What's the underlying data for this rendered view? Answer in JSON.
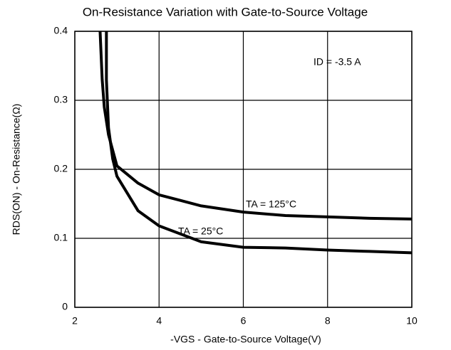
{
  "chart_data": {
    "type": "line",
    "title": "On-Resistance Variation with Gate-to-Source Voltage",
    "xlabel": "-VGS - Gate-to-Source Voltage(V)",
    "ylabel": "RDS(ON) - On-Resistance(Ω)",
    "annotations": [
      "ID = -3.5 A",
      "TA = 125°C",
      "TA = 25°C"
    ],
    "xlim": [
      2,
      10
    ],
    "xticks": [
      2,
      4,
      6,
      8,
      10
    ],
    "ylim": [
      0,
      0.4
    ],
    "yticks": [
      0,
      0.1,
      0.2,
      0.3,
      0.4
    ],
    "grid": true,
    "series": [
      {
        "name": "TA = 125°C",
        "color": "#000000",
        "x": [
          2.6,
          2.65,
          2.7,
          2.8,
          3.0,
          3.5,
          4,
          5,
          6,
          7,
          8,
          9,
          10
        ],
        "values": [
          0.4,
          0.33,
          0.29,
          0.25,
          0.205,
          0.18,
          0.163,
          0.147,
          0.138,
          0.133,
          0.131,
          0.129,
          0.128
        ]
      },
      {
        "name": "TA = 25°C",
        "color": "#000000",
        "x": [
          2.75,
          2.75,
          2.8,
          2.9,
          3.0,
          3.5,
          4,
          5,
          6,
          7,
          8,
          9,
          10
        ],
        "values": [
          0.4,
          0.33,
          0.26,
          0.215,
          0.19,
          0.14,
          0.118,
          0.095,
          0.087,
          0.086,
          0.083,
          0.081,
          0.079
        ]
      }
    ]
  }
}
